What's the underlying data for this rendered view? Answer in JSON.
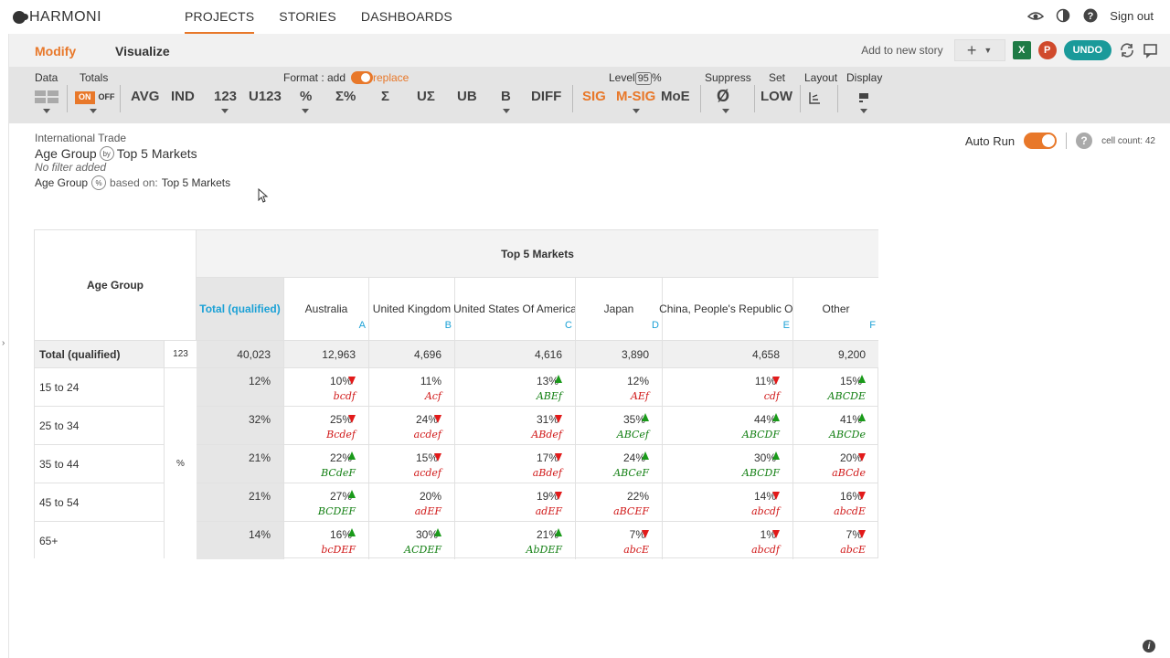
{
  "app": {
    "logo": "HARMONI"
  },
  "nav": {
    "items": [
      "PROJECTS",
      "STORIES",
      "DASHBOARDS"
    ],
    "active": 0
  },
  "top_right": {
    "sign_out": "Sign out"
  },
  "subbar": {
    "modify": "Modify",
    "visualize": "Visualize",
    "add_to_story": "Add to new story",
    "excel": "X",
    "ppt": "P",
    "undo": "UNDO"
  },
  "toolbar": {
    "labels": {
      "data": "Data",
      "totals": "Totals",
      "format": "Format : add",
      "replace": "replace",
      "level_pre": "Level",
      "level_val": "95",
      "level_post": "%",
      "suppress": "Suppress",
      "set": "Set",
      "layout": "Layout",
      "display": "Display"
    },
    "on": "ON",
    "off": "OFF",
    "buttons": [
      "AVG",
      "IND",
      "123",
      "U123",
      "%",
      "Σ%",
      "Σ",
      "UΣ",
      "UB",
      "B",
      "DIFF"
    ],
    "sig": "SIG",
    "msig": "M-SIG",
    "moe": "MoE",
    "suppress_sym": "Ø",
    "set_val": "LOW"
  },
  "info": {
    "dataset": "International Trade",
    "row_var": "Age Group",
    "col_var": "Top 5 Markets",
    "by": "by",
    "no_filter": "No filter added",
    "pct_var": "Age Group",
    "pct_sym": "%",
    "based_on": "based on:",
    "based_var": "Top 5 Markets"
  },
  "autorun": {
    "label": "Auto Run",
    "help": "?",
    "cell_count": "cell count: 42"
  },
  "table": {
    "stub_header": "Age Group",
    "spanner": "Top 5 Markets",
    "columns": [
      {
        "label": "Total (qualified)",
        "letter": ""
      },
      {
        "label": "Australia",
        "letter": "A"
      },
      {
        "label": "United Kingdom",
        "letter": "B"
      },
      {
        "label": "United States Of America",
        "letter": "C"
      },
      {
        "label": "Japan",
        "letter": "D"
      },
      {
        "label": "China, People's Republic Of",
        "letter": "E"
      },
      {
        "label": "Other",
        "letter": "F"
      }
    ],
    "total_row": {
      "label": "Total (qualified)",
      "stat": "123",
      "values": [
        "40,023",
        "12,963",
        "4,696",
        "4,616",
        "3,890",
        "4,658",
        "9,200"
      ]
    },
    "pct_stat": "%",
    "rows": [
      {
        "label": "15 to 24",
        "total": "12%",
        "cells": [
          {
            "v": "10%",
            "dir": "down",
            "sig": "bcdf",
            "c": "red"
          },
          {
            "v": "11%",
            "dir": "",
            "sig": "Acf",
            "c": "red"
          },
          {
            "v": "13%",
            "dir": "up",
            "sig": "ABEf",
            "c": "green"
          },
          {
            "v": "12%",
            "dir": "",
            "sig": "AEf",
            "c": "red"
          },
          {
            "v": "11%",
            "dir": "down",
            "sig": "cdf",
            "c": "red"
          },
          {
            "v": "15%",
            "dir": "up",
            "sig": "ABCDE",
            "c": "green"
          }
        ]
      },
      {
        "label": "25 to 34",
        "total": "32%",
        "cells": [
          {
            "v": "25%",
            "dir": "down",
            "sig": "Bcdef",
            "c": "red"
          },
          {
            "v": "24%",
            "dir": "down",
            "sig": "acdef",
            "c": "red"
          },
          {
            "v": "31%",
            "dir": "down",
            "sig": "ABdef",
            "c": "red"
          },
          {
            "v": "35%",
            "dir": "up",
            "sig": "ABCef",
            "c": "green"
          },
          {
            "v": "44%",
            "dir": "up",
            "sig": "ABCDF",
            "c": "green"
          },
          {
            "v": "41%",
            "dir": "up",
            "sig": "ABCDe",
            "c": "green"
          }
        ]
      },
      {
        "label": "35 to 44",
        "total": "21%",
        "cells": [
          {
            "v": "22%",
            "dir": "up",
            "sig": "BCdeF",
            "c": "green"
          },
          {
            "v": "15%",
            "dir": "down",
            "sig": "acdef",
            "c": "red"
          },
          {
            "v": "17%",
            "dir": "down",
            "sig": "aBdef",
            "c": "red"
          },
          {
            "v": "24%",
            "dir": "up",
            "sig": "ABCeF",
            "c": "green"
          },
          {
            "v": "30%",
            "dir": "up",
            "sig": "ABCDF",
            "c": "green"
          },
          {
            "v": "20%",
            "dir": "down",
            "sig": "aBCde",
            "c": "red"
          }
        ]
      },
      {
        "label": "45 to 54",
        "total": "21%",
        "cells": [
          {
            "v": "27%",
            "dir": "up",
            "sig": "BCDEF",
            "c": "green"
          },
          {
            "v": "20%",
            "dir": "",
            "sig": "adEF",
            "c": "red"
          },
          {
            "v": "19%",
            "dir": "down",
            "sig": "adEF",
            "c": "red"
          },
          {
            "v": "22%",
            "dir": "",
            "sig": "aBCEF",
            "c": "red"
          },
          {
            "v": "14%",
            "dir": "down",
            "sig": "abcdf",
            "c": "red"
          },
          {
            "v": "16%",
            "dir": "down",
            "sig": "abcdE",
            "c": "red"
          }
        ]
      },
      {
        "label": "65+",
        "total": "14%",
        "cells": [
          {
            "v": "16%",
            "dir": "up",
            "sig": "bcDEF",
            "c": "red"
          },
          {
            "v": "30%",
            "dir": "up",
            "sig": "ACDEF",
            "c": "green"
          },
          {
            "v": "21%",
            "dir": "up",
            "sig": "AbDEF",
            "c": "green"
          },
          {
            "v": "7%",
            "dir": "down",
            "sig": "abcE",
            "c": "red"
          },
          {
            "v": "1%",
            "dir": "down",
            "sig": "abcdf",
            "c": "red"
          },
          {
            "v": "7%",
            "dir": "down",
            "sig": "abcE",
            "c": "red"
          }
        ]
      }
    ]
  }
}
